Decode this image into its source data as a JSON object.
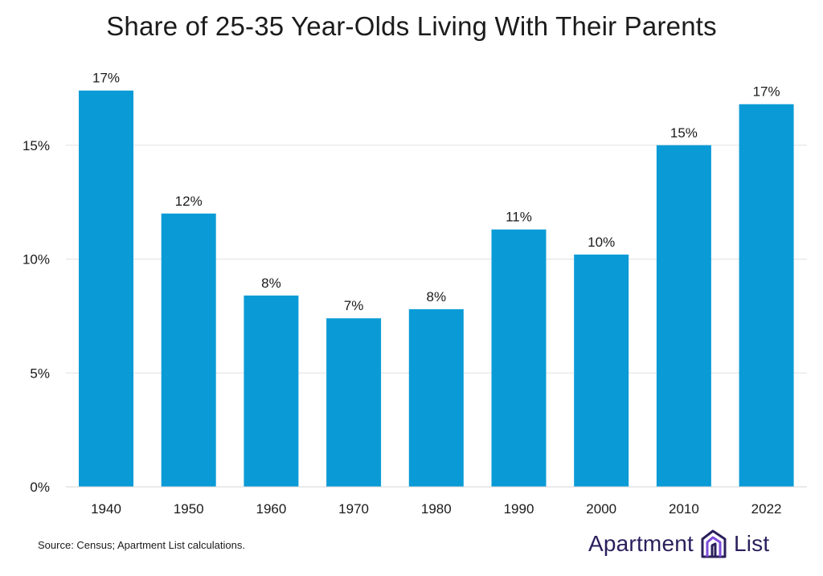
{
  "chart_data": {
    "type": "bar",
    "title": "Share of 25-35 Year-Olds Living With Their Parents",
    "categories": [
      "1940",
      "1950",
      "1960",
      "1970",
      "1980",
      "1990",
      "2000",
      "2010",
      "2022"
    ],
    "values": [
      17.4,
      12.0,
      8.4,
      7.4,
      7.8,
      11.3,
      10.2,
      15.0,
      16.8
    ],
    "data_labels": [
      "17%",
      "12%",
      "8%",
      "7%",
      "8%",
      "11%",
      "10%",
      "15%",
      "17%"
    ],
    "y_ticks": [
      0,
      5,
      10,
      15
    ],
    "y_tick_labels": [
      "0%",
      "5%",
      "10%",
      "15%"
    ],
    "ylim": [
      0,
      20
    ],
    "xlabel": "",
    "ylabel": "",
    "grid": true,
    "legend": "none",
    "bar_color": "#0a9bd6"
  },
  "footer": {
    "source": "Source: Census; Apartment List calculations."
  },
  "brand": {
    "name_part1": "Apartment",
    "name_part2": "List",
    "icon": "building-logo-icon",
    "color": "#2b1f5c"
  }
}
